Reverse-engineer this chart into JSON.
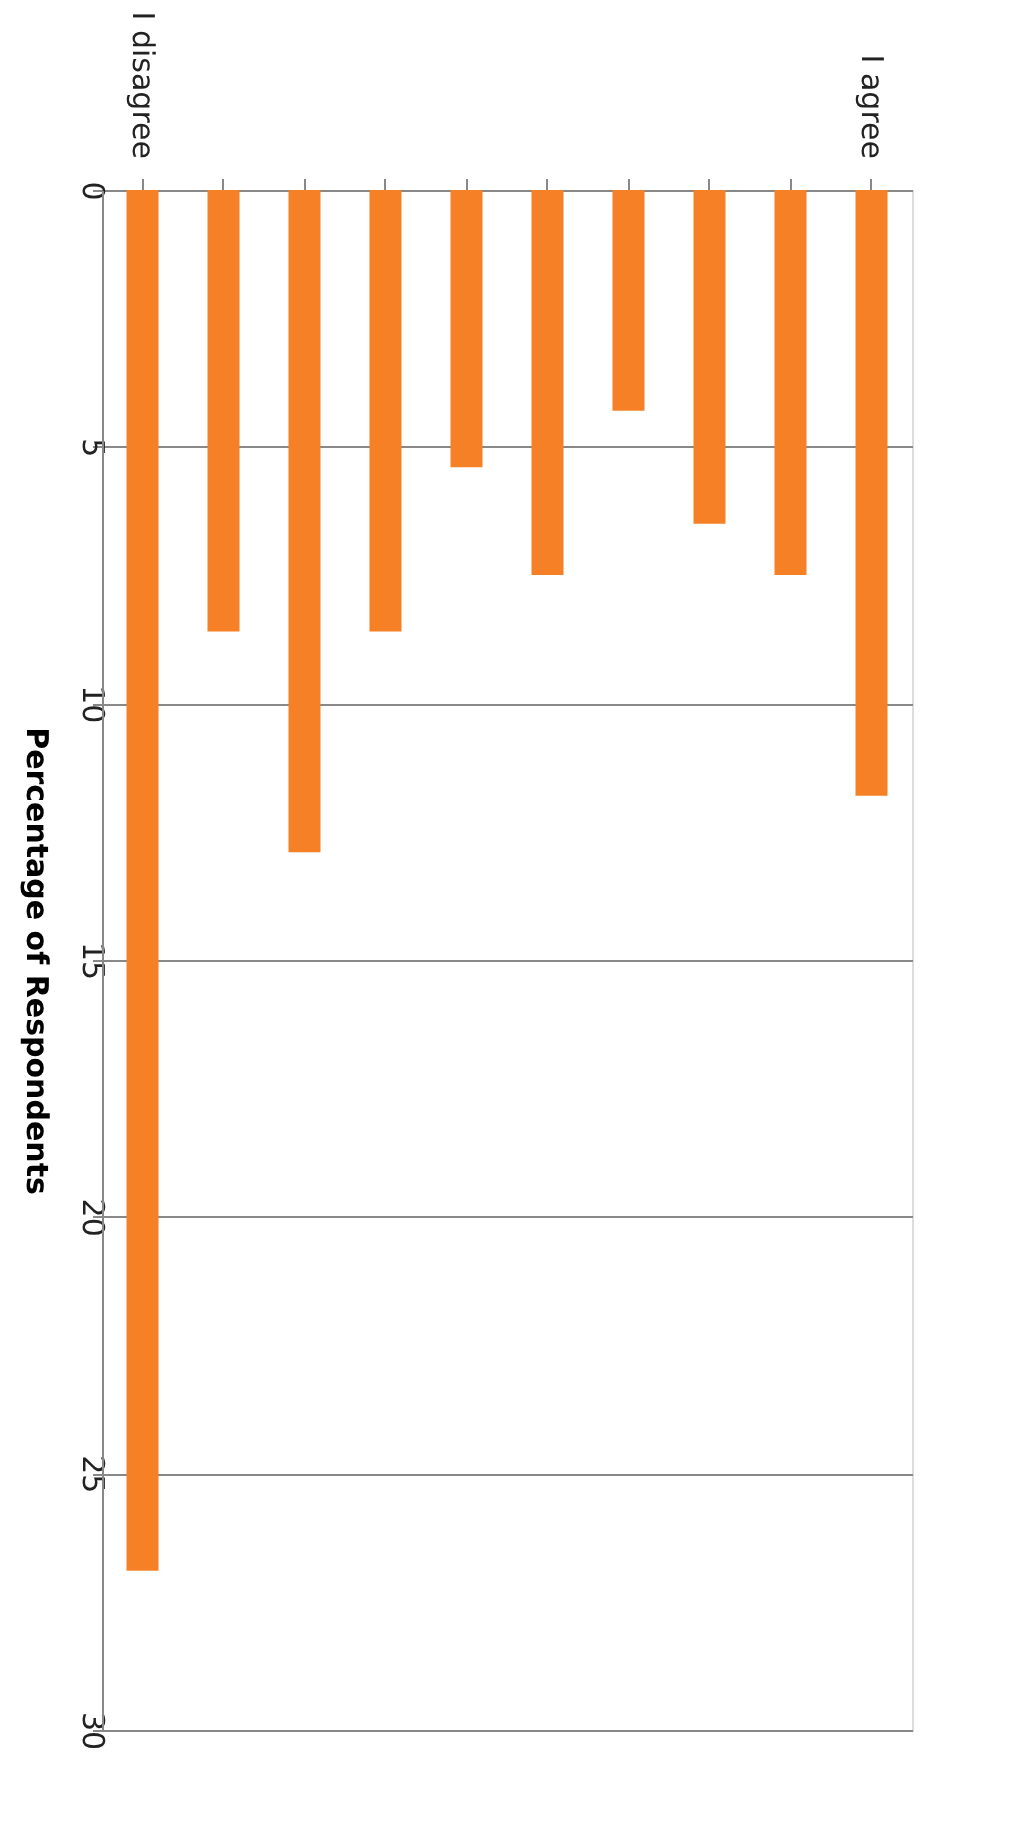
{
  "chart_data": {
    "type": "bar",
    "ylabel": "Percentage of Respondents",
    "categories": [
      "I disagree",
      null,
      null,
      null,
      null,
      null,
      null,
      null,
      null,
      "I agree"
    ],
    "values": [
      26.9,
      8.6,
      12.9,
      8.6,
      5.4,
      7.5,
      4.3,
      6.5,
      7.5,
      11.8
    ],
    "color": "#f58025",
    "ylim": [
      30,
      0
    ],
    "yticks": [
      0,
      5,
      10,
      15,
      20,
      25,
      30
    ],
    "grid": "y"
  }
}
